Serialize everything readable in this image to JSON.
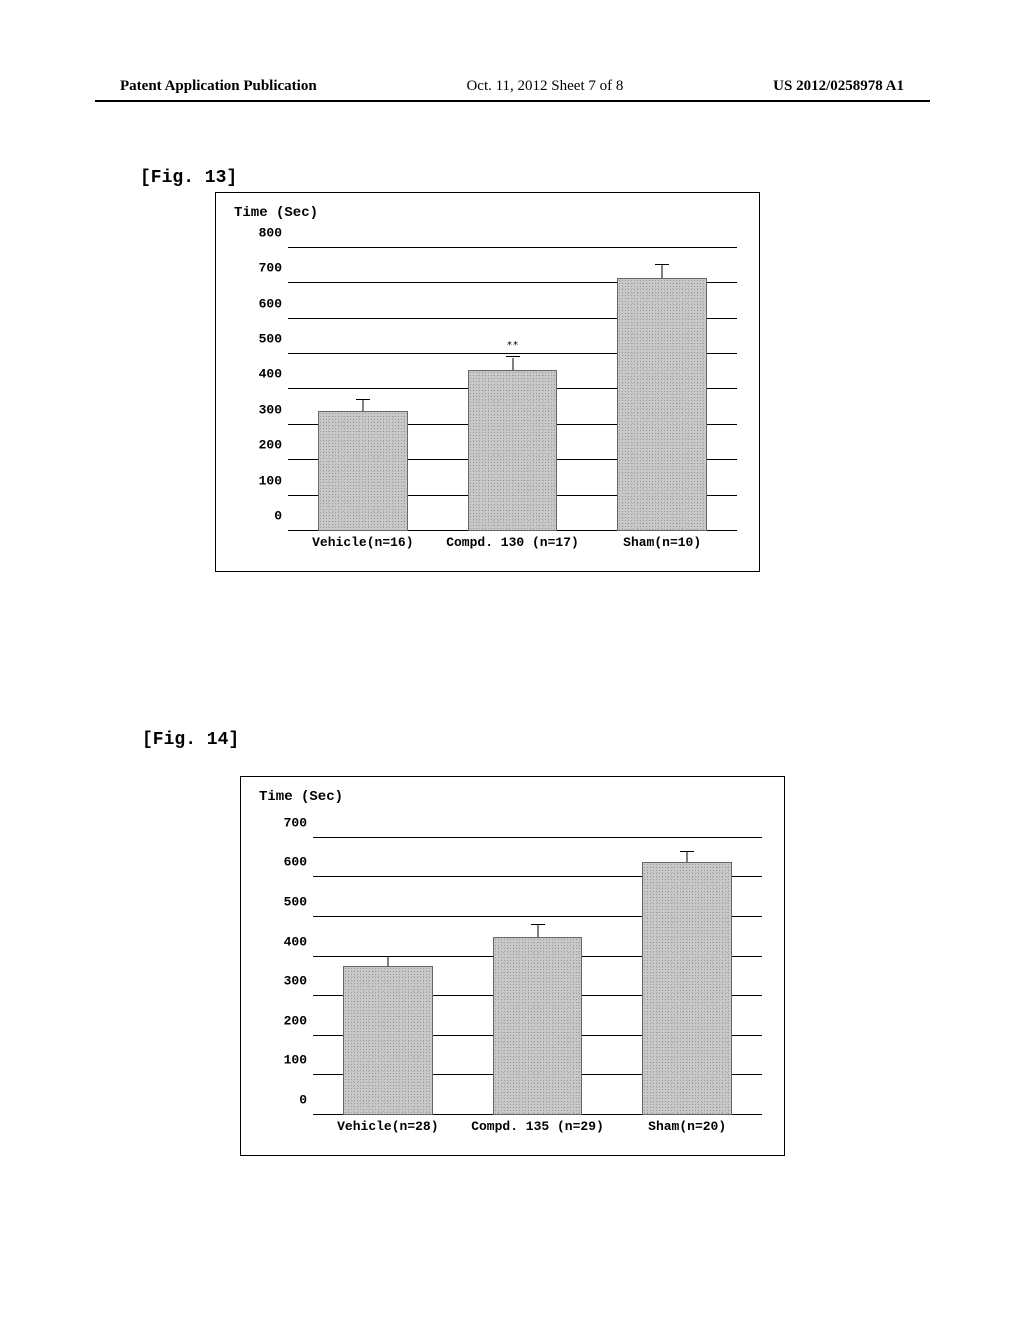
{
  "header": {
    "left": "Patent Application Publication",
    "center": "Oct. 11, 2012  Sheet 7 of 8",
    "right": "US 2012/0258978 A1"
  },
  "fig13": {
    "label": "[Fig. 13]",
    "chart": {
      "type": "bar",
      "y_label": "Time (Sec)",
      "y_ticks": [
        0,
        100,
        200,
        300,
        400,
        500,
        600,
        700,
        800
      ],
      "ymax": 850,
      "bar_color": "#c8c8c8",
      "grid_color": "#000000",
      "background_color": "#ffffff",
      "bars": [
        {
          "label": "Vehicle(n=16)",
          "value": 340,
          "error": 30,
          "sig": ""
        },
        {
          "label": "Compd. 130 (n=17)",
          "value": 455,
          "error": 35,
          "sig": "**"
        },
        {
          "label": "Sham(n=10)",
          "value": 715,
          "error": 35,
          "sig": ""
        }
      ]
    }
  },
  "fig14": {
    "label": "[Fig. 14]",
    "chart": {
      "type": "bar",
      "y_label": "Time (Sec)",
      "y_ticks": [
        0,
        100,
        200,
        300,
        400,
        500,
        600,
        700
      ],
      "ymax": 760,
      "bar_color": "#c8c8c8",
      "grid_color": "#000000",
      "background_color": "#ffffff",
      "bars": [
        {
          "label": "Vehicle(n=28)",
          "value": 375,
          "error": 25,
          "sig": ""
        },
        {
          "label": "Compd. 135 (n=29)",
          "value": 450,
          "error": 30,
          "sig": ""
        },
        {
          "label": "Sham(n=20)",
          "value": 640,
          "error": 25,
          "sig": ""
        }
      ]
    }
  }
}
